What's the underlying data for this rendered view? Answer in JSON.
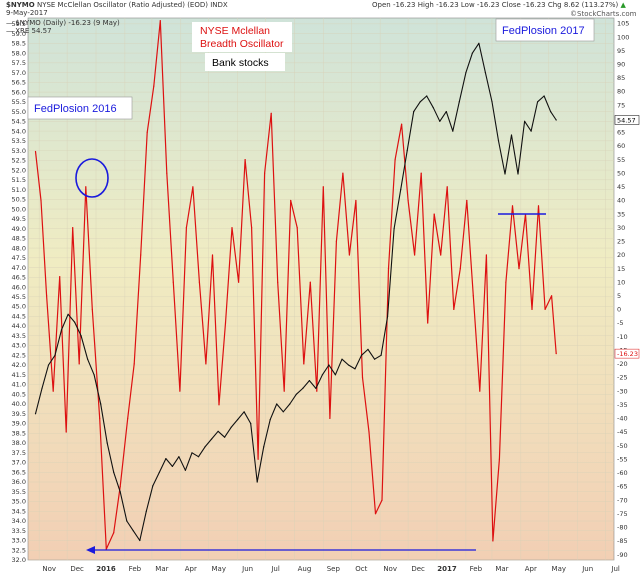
{
  "header": {
    "symbol": "$NYMO",
    "description": "NYSE McClellan Oscillator (Ratio Adjusted) (EOD) INDX",
    "date": "9-May-2017",
    "legend_main": "— $NYMO (Daily) -16.23 (9 May)",
    "legend_xre": "— XRE 54.57",
    "ohlc": {
      "open_label": "Open",
      "open": "-16.23",
      "high_label": "High",
      "high": "-16.23",
      "low_label": "Low",
      "low": "-16.23",
      "close_label": "Close",
      "close": "-16.23",
      "chg_label": "Chg",
      "chg": "8.62 (113.27%)",
      "change_icon": "up-triangle-icon"
    },
    "brand": "©StockCharts.com"
  },
  "annotations": {
    "oscillator_title_line1": "NYSE Mclellan",
    "oscillator_title_line2": "Breadth Oscillator",
    "bank_stocks": "Bank stocks",
    "fedplosion_2016": "FedPlosion 2016",
    "fedplosion_2017": "FedPlosion 2017"
  },
  "colors": {
    "nymo_line": "#dd1111",
    "xre_line": "#111111",
    "annotation_blue": "#1a1add",
    "title_red": "#dd1111",
    "bg_top": "#cfe3d9",
    "bg_mid": "#f0ecc2",
    "bg_bottom": "#f2cfb4"
  },
  "chart_data": {
    "type": "line",
    "x_labels": [
      "Nov",
      "Dec",
      "2016",
      "Feb",
      "Mar",
      "Apr",
      "May",
      "Jun",
      "Jul",
      "Aug",
      "Sep",
      "Oct",
      "Nov",
      "Dec",
      "2017",
      "Feb",
      "Mar",
      "Apr",
      "May",
      "Jun",
      "Jul"
    ],
    "left_axis": {
      "label": "",
      "range": [
        32.0,
        59.8
      ],
      "ticks": [
        32.0,
        32.5,
        33.0,
        33.5,
        34.0,
        34.5,
        35.0,
        35.5,
        36.0,
        36.5,
        37.0,
        37.5,
        38.0,
        38.5,
        39.0,
        39.5,
        40.0,
        40.5,
        41.0,
        41.5,
        42.0,
        42.5,
        43.0,
        43.5,
        44.0,
        44.5,
        45.0,
        45.5,
        46.0,
        46.5,
        47.0,
        47.5,
        48.0,
        48.5,
        49.0,
        49.5,
        50.0,
        50.5,
        51.0,
        51.5,
        52.0,
        52.5,
        53.0,
        53.5,
        54.0,
        54.5,
        55.0,
        55.5,
        56.0,
        56.5,
        57.0,
        57.5,
        58.0,
        58.5,
        59.0,
        59.5
      ],
      "tick_labels": [
        "32.0",
        "32.5",
        "33.0",
        "33.5",
        "34.0",
        "34.5",
        "35.0",
        "35.5",
        "36.0",
        "36.5",
        "37.0",
        "37.5",
        "38.0",
        "38.5",
        "39.0",
        "39.5",
        "40.0",
        "40.5",
        "41.0",
        "41.5",
        "42.0",
        "42.5",
        "43.0",
        "43.5",
        "44.0",
        "44.5",
        "45.0",
        "45.5",
        "46.0",
        "46.5",
        "47.0",
        "47.5",
        "48.0",
        "48.5",
        "49.0",
        "49.5",
        "50.0",
        "50.5",
        "51.0",
        "51.5",
        "52.0",
        "52.5",
        "53.0",
        "53.5",
        "54.0",
        "54.5",
        "55.0",
        "55.5",
        "56.0",
        "56.5",
        "57.0",
        "57.5",
        "58.0",
        "58.5",
        "59.0",
        "59.5"
      ]
    },
    "right_axis": {
      "label": "",
      "range": [
        -92,
        107
      ],
      "ticks": [
        105,
        100,
        95,
        90,
        85,
        80,
        75,
        70,
        65,
        60,
        55,
        50,
        45,
        40,
        35,
        30,
        25,
        20,
        15,
        10,
        5,
        0,
        -5,
        -10,
        -15,
        -20,
        -25,
        -30,
        -35,
        -40,
        -45,
        -50,
        -55,
        -60,
        -65,
        -70,
        -75,
        -80,
        -85,
        -90
      ],
      "tick_labels": [
        "105",
        "100",
        "95",
        "90",
        "85",
        "80",
        "75",
        "70",
        "65",
        "60",
        "55",
        "50",
        "45",
        "40",
        "35",
        "30",
        "25",
        "20",
        "15",
        "10",
        "5",
        "0",
        "-5",
        "-10",
        "-15",
        "-20",
        "-25",
        "-30",
        "-35",
        "-40",
        "-45",
        "-50",
        "-55",
        "-60",
        "-65",
        "-70",
        "-75",
        "-80",
        "-85",
        "-90"
      ]
    },
    "last_value_tags": {
      "xre": "54.57",
      "nymo": "-16.23"
    },
    "series": [
      {
        "name": "$NYMO",
        "axis": "right",
        "color": "#dd1111",
        "x": [
          "2015-10-28",
          "2015-11-03",
          "2015-11-09",
          "2015-11-16",
          "2015-11-23",
          "2015-11-30",
          "2015-12-07",
          "2015-12-14",
          "2015-12-21",
          "2015-12-28",
          "2016-01-05",
          "2016-01-12",
          "2016-01-20",
          "2016-01-27",
          "2016-02-04",
          "2016-02-11",
          "2016-02-18",
          "2016-02-25",
          "2016-03-03",
          "2016-03-10",
          "2016-03-17",
          "2016-03-24",
          "2016-03-31",
          "2016-04-07",
          "2016-04-14",
          "2016-04-21",
          "2016-04-28",
          "2016-05-05",
          "2016-05-12",
          "2016-05-19",
          "2016-05-26",
          "2016-06-02",
          "2016-06-09",
          "2016-06-16",
          "2016-06-23",
          "2016-06-30",
          "2016-07-07",
          "2016-07-14",
          "2016-07-21",
          "2016-07-28",
          "2016-08-04",
          "2016-08-11",
          "2016-08-18",
          "2016-08-25",
          "2016-09-01",
          "2016-09-08",
          "2016-09-15",
          "2016-09-22",
          "2016-09-29",
          "2016-10-06",
          "2016-10-13",
          "2016-10-20",
          "2016-10-27",
          "2016-11-03",
          "2016-11-10",
          "2016-11-17",
          "2016-11-24",
          "2016-12-01",
          "2016-12-08",
          "2016-12-15",
          "2016-12-22",
          "2016-12-29",
          "2017-01-05",
          "2017-01-12",
          "2017-01-19",
          "2017-01-26",
          "2017-02-02",
          "2017-02-09",
          "2017-02-16",
          "2017-02-23",
          "2017-03-02",
          "2017-03-09",
          "2017-03-16",
          "2017-03-23",
          "2017-03-30",
          "2017-04-06",
          "2017-04-13",
          "2017-04-20",
          "2017-04-27",
          "2017-05-04",
          "2017-05-09"
        ],
        "values": [
          58,
          40,
          5,
          -30,
          12,
          -45,
          30,
          -20,
          45,
          0,
          -40,
          -88,
          -82,
          -65,
          -40,
          -20,
          20,
          65,
          82,
          106,
          50,
          10,
          -30,
          30,
          45,
          10,
          -20,
          20,
          -35,
          -5,
          30,
          10,
          55,
          30,
          -55,
          50,
          72,
          10,
          -30,
          40,
          30,
          -20,
          10,
          -30,
          45,
          -40,
          25,
          50,
          20,
          40,
          -25,
          -45,
          -75,
          -70,
          15,
          55,
          68,
          40,
          20,
          50,
          -5,
          35,
          20,
          45,
          0,
          15,
          40,
          5,
          -30,
          20,
          -85,
          -55,
          10,
          38,
          15,
          35,
          0,
          38,
          0,
          5,
          -16.23
        ]
      },
      {
        "name": "XRE",
        "axis": "left",
        "color": "#111111",
        "x": [
          "2015-10-28",
          "2015-11-04",
          "2015-11-11",
          "2015-11-18",
          "2015-11-25",
          "2015-12-02",
          "2015-12-09",
          "2015-12-16",
          "2015-12-23",
          "2015-12-30",
          "2016-01-06",
          "2016-01-13",
          "2016-01-20",
          "2016-01-27",
          "2016-02-03",
          "2016-02-10",
          "2016-02-17",
          "2016-02-24",
          "2016-03-02",
          "2016-03-09",
          "2016-03-16",
          "2016-03-23",
          "2016-03-30",
          "2016-04-06",
          "2016-04-13",
          "2016-04-20",
          "2016-04-27",
          "2016-05-04",
          "2016-05-11",
          "2016-05-18",
          "2016-05-25",
          "2016-06-01",
          "2016-06-08",
          "2016-06-15",
          "2016-06-22",
          "2016-06-29",
          "2016-07-06",
          "2016-07-13",
          "2016-07-20",
          "2016-07-27",
          "2016-08-03",
          "2016-08-10",
          "2016-08-17",
          "2016-08-24",
          "2016-08-31",
          "2016-09-07",
          "2016-09-14",
          "2016-09-21",
          "2016-09-28",
          "2016-10-05",
          "2016-10-12",
          "2016-10-19",
          "2016-10-26",
          "2016-11-02",
          "2016-11-09",
          "2016-11-16",
          "2016-11-23",
          "2016-11-30",
          "2016-12-07",
          "2016-12-14",
          "2016-12-21",
          "2016-12-28",
          "2017-01-04",
          "2017-01-11",
          "2017-01-18",
          "2017-01-25",
          "2017-02-01",
          "2017-02-08",
          "2017-02-15",
          "2017-02-22",
          "2017-03-01",
          "2017-03-08",
          "2017-03-15",
          "2017-03-22",
          "2017-03-29",
          "2017-04-05",
          "2017-04-12",
          "2017-04-19",
          "2017-04-26",
          "2017-05-03",
          "2017-05-09"
        ],
        "values": [
          39.5,
          40.8,
          42.0,
          42.5,
          43.8,
          44.6,
          44.2,
          43.5,
          42.3,
          41.5,
          40.0,
          38.0,
          36.5,
          35.5,
          34.0,
          33.5,
          33.0,
          34.5,
          35.8,
          36.5,
          37.2,
          36.8,
          37.3,
          36.6,
          37.5,
          37.3,
          37.8,
          38.2,
          38.6,
          38.3,
          38.8,
          39.2,
          39.6,
          39.0,
          36.0,
          37.8,
          39.2,
          40.0,
          39.6,
          40.0,
          40.5,
          40.8,
          41.2,
          40.8,
          41.5,
          42.0,
          41.5,
          42.3,
          42.0,
          41.8,
          42.5,
          42.8,
          42.3,
          42.5,
          44.5,
          49.0,
          51.0,
          53.0,
          55.0,
          55.5,
          55.8,
          55.2,
          54.5,
          55.0,
          54.0,
          55.5,
          57.0,
          58.0,
          58.5,
          57.0,
          55.5,
          53.5,
          51.8,
          53.8,
          51.8,
          54.5,
          54.0,
          55.5,
          55.8,
          55.0,
          54.57
        ]
      }
    ],
    "title": "",
    "xlabel": "",
    "ylabel": "",
    "grid": true,
    "legend_placement": "top-left"
  }
}
